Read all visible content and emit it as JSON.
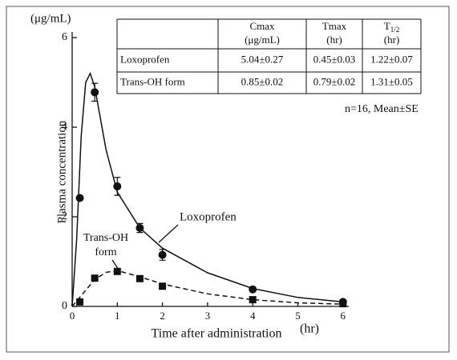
{
  "chart_data": {
    "type": "line",
    "y_unit": "(μg/mL)",
    "ylabel": "Plasma concentration",
    "xlabel": "Time after administration",
    "x_unit": "(hr)",
    "xlim": [
      0,
      6.1
    ],
    "xticks": [
      0,
      1,
      2,
      3,
      4,
      5,
      6
    ],
    "ylim": [
      0,
      6
    ],
    "yticks": [
      0,
      2,
      4,
      6
    ],
    "series": [
      {
        "name": "Loxoprofen",
        "color": "#111111",
        "marker": "circle",
        "dash": false,
        "x": [
          0.17,
          0.5,
          1,
          1.5,
          2,
          4,
          6
        ],
        "values": [
          2.42,
          4.78,
          2.68,
          1.75,
          1.15,
          0.38,
          0.1
        ],
        "errors": [
          null,
          0.2,
          0.2,
          0.1,
          0.12,
          null,
          null
        ],
        "curve": {
          "x": [
            0,
            0.1,
            0.2,
            0.3,
            0.4,
            0.5,
            0.75,
            1,
            1.5,
            2,
            3,
            4,
            5,
            6
          ],
          "values": [
            0,
            1.5,
            3.8,
            5.0,
            5.2,
            4.9,
            3.5,
            2.55,
            1.75,
            1.3,
            0.75,
            0.4,
            0.2,
            0.1
          ]
        }
      },
      {
        "name": "Trans-OH form",
        "color": "#111111",
        "marker": "square",
        "dash": true,
        "x": [
          0.17,
          0.5,
          1,
          1.5,
          2,
          4,
          6
        ],
        "values": [
          0.1,
          0.63,
          0.78,
          0.62,
          0.45,
          0.15,
          0.06
        ],
        "errors": [
          null,
          null,
          null,
          null,
          null,
          null,
          null
        ],
        "curve": {
          "x": [
            0,
            0.25,
            0.5,
            0.75,
            1,
            1.5,
            2,
            3,
            4,
            5,
            6
          ],
          "values": [
            0,
            0.3,
            0.6,
            0.76,
            0.8,
            0.66,
            0.5,
            0.28,
            0.15,
            0.08,
            0.05
          ]
        }
      }
    ],
    "annotations": [
      "Loxoprofen",
      "Trans-OH",
      "form"
    ],
    "note": "n=16, Mean±SE",
    "table": {
      "columns": [
        {
          "name": "Cmax",
          "unit": "(μg/mL)"
        },
        {
          "name": "Tmax",
          "unit": "(hr)"
        },
        {
          "name": "T",
          "sub": "1/2",
          "unit": "(hr)"
        }
      ],
      "rows": [
        [
          "Loxoprofen",
          "5.04±0.27",
          "0.45±0.03",
          "1.22±0.07"
        ],
        [
          "Trans-OH form",
          "0.85±0.02",
          "0.79±0.02",
          "1.31±0.05"
        ]
      ]
    }
  }
}
